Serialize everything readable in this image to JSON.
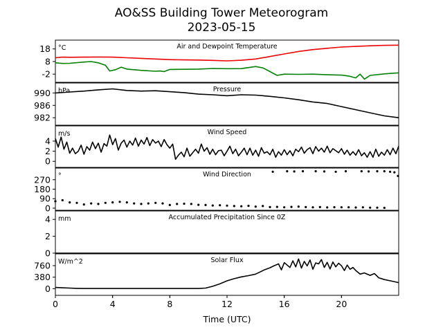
{
  "figure": {
    "title_line1": "AO&SS Building Tower Meteorogram",
    "title_line2": "2023-05-15",
    "xlabel": "Time (UTC)",
    "x_ticks": [
      0,
      4,
      8,
      12,
      16,
      20
    ],
    "x_range": [
      0,
      24
    ]
  },
  "chart_data": [
    {
      "type": "line",
      "title": "Air and Dewpoint Temperature",
      "unit": "°C",
      "ylim": [
        -8.5,
        25
      ],
      "y_ticks": [
        -2,
        8,
        18
      ],
      "series": [
        {
          "color": "#ee0000",
          "x": [
            0,
            0.5,
            1,
            2,
            3,
            4,
            5,
            6,
            7,
            8,
            9,
            10,
            11,
            12,
            13,
            14,
            15,
            16,
            17,
            18,
            19,
            20,
            21,
            22,
            23,
            24
          ],
          "values": [
            11,
            11.5,
            11.4,
            11.5,
            11.6,
            11.5,
            11,
            10.5,
            10,
            9.5,
            9.3,
            9.2,
            8.9,
            8.5,
            9,
            10,
            12,
            14,
            16,
            17.5,
            18.5,
            19.5,
            20,
            20.5,
            20.8,
            21
          ]
        },
        {
          "color": "#008000",
          "x": [
            0,
            0.5,
            1,
            2,
            2.5,
            3,
            3.5,
            3.8,
            4.2,
            4.6,
            5,
            6,
            7,
            7.3,
            7.6,
            8,
            9,
            10,
            11,
            12,
            13,
            14,
            14.5,
            15,
            15.5,
            16,
            17,
            18,
            19,
            20,
            20.5,
            21,
            21.3,
            21.6,
            22,
            23,
            24
          ],
          "values": [
            7,
            6.5,
            6.6,
            7.6,
            8,
            7,
            5,
            0.5,
            1.5,
            3.5,
            2,
            1,
            0.3,
            0.5,
            0,
            1.7,
            1.8,
            2,
            2.5,
            2.3,
            2.4,
            4,
            3,
            0,
            -3,
            -2,
            -2.2,
            -2,
            -2.5,
            -2.8,
            -3.5,
            -5,
            -2,
            -6,
            -3,
            -1.8,
            -1
          ]
        }
      ]
    },
    {
      "type": "line",
      "title": "Pressure",
      "unit": "hPa",
      "ylim": [
        979.6,
        993.2
      ],
      "y_ticks": [
        982,
        986,
        990
      ],
      "series": [
        {
          "color": "#000000",
          "x": [
            0,
            1,
            2,
            3,
            4,
            5,
            6,
            7,
            8,
            9,
            10,
            11,
            12,
            13,
            14,
            15,
            16,
            17,
            18,
            19,
            20,
            21,
            22,
            23,
            24
          ],
          "values": [
            990,
            990.3,
            990.6,
            991,
            991.3,
            990.8,
            990.6,
            990.7,
            990.4,
            990.1,
            989.6,
            989.4,
            989.1,
            989.4,
            989.3,
            988.9,
            988.4,
            987.8,
            987.1,
            986.6,
            985.6,
            984.6,
            983.6,
            982.6,
            982
          ]
        }
      ]
    },
    {
      "type": "line",
      "title": "Wind Speed",
      "unit": "m/s",
      "ylim": [
        -1.2,
        7
      ],
      "y_ticks": [
        0,
        2,
        4
      ],
      "series": [
        {
          "color": "#000000",
          "x": [
            0,
            0.2,
            0.4,
            0.6,
            0.8,
            1,
            1.2,
            1.4,
            1.6,
            1.8,
            2,
            2.2,
            2.4,
            2.6,
            2.8,
            3,
            3.2,
            3.4,
            3.6,
            3.8,
            4,
            4.2,
            4.4,
            4.6,
            4.8,
            5,
            5.2,
            5.4,
            5.6,
            5.8,
            6,
            6.2,
            6.4,
            6.6,
            6.8,
            7,
            7.2,
            7.4,
            7.6,
            7.8,
            8,
            8.2,
            8.4,
            8.6,
            8.8,
            9,
            9.2,
            9.4,
            9.6,
            9.8,
            10,
            10.2,
            10.4,
            10.6,
            10.8,
            11,
            11.2,
            11.4,
            11.6,
            11.8,
            12,
            12.2,
            12.4,
            12.6,
            12.8,
            13,
            13.2,
            13.4,
            13.6,
            13.8,
            14,
            14.2,
            14.4,
            14.6,
            14.8,
            15,
            15.2,
            15.4,
            15.6,
            15.8,
            16,
            16.2,
            16.4,
            16.6,
            16.8,
            17,
            17.2,
            17.4,
            17.6,
            17.8,
            18,
            18.2,
            18.4,
            18.6,
            18.8,
            19,
            19.2,
            19.4,
            19.6,
            19.8,
            20,
            20.2,
            20.4,
            20.6,
            20.8,
            21,
            21.2,
            21.4,
            21.6,
            21.8,
            22,
            22.2,
            22.4,
            22.6,
            22.8,
            23,
            23.2,
            23.4,
            23.6,
            23.8,
            24
          ],
          "values": [
            4.5,
            2.8,
            4.8,
            2.4,
            3.8,
            1.6,
            2.6,
            1.5,
            2,
            3.2,
            1.4,
            2.9,
            2.2,
            3.8,
            2.5,
            3.6,
            1.8,
            3.5,
            3,
            5.2,
            3.3,
            4.5,
            2.2,
            3.6,
            4.2,
            2.8,
            4,
            3.2,
            4.6,
            3,
            4.2,
            3.4,
            4.7,
            3.1,
            4.3,
            3.6,
            4,
            2.9,
            4.3,
            3.3,
            2.6,
            3.4,
            0.4,
            1.2,
            1.8,
            0.9,
            2.6,
            1,
            1.7,
            2.4,
            1.6,
            3.4,
            2,
            2.7,
            1.4,
            2.4,
            1.3,
            2.1,
            2.2,
            1.1,
            2,
            3,
            1.5,
            2.4,
            1.1,
            1.8,
            2.6,
            1.3,
            2.6,
            1.2,
            2.2,
            1,
            2.7,
            1.6,
            1.9,
            1.3,
            2.4,
            0.8,
            1.9,
            1.2,
            2.3,
            1.3,
            2.1,
            1.1,
            2.4,
            1.9,
            2.8,
            1.6,
            2.3,
            2.7,
            1.5,
            2.9,
            2,
            2.6,
            1.8,
            3,
            1.7,
            2.5,
            2.1,
            1.7,
            2.5,
            1.4,
            2.2,
            1.2,
            1.9,
            1.2,
            2.3,
            1.1,
            1.7,
            0.8,
            1.9,
            0.8,
            2.4,
            1,
            1.8,
            1.2,
            2.3,
            1.3,
            2.6,
            1.5,
            3
          ]
        }
      ]
    },
    {
      "type": "scatter",
      "title": "Wind Direction",
      "unit": "°",
      "ylim": [
        -20,
        380
      ],
      "y_ticks": [
        0,
        90,
        180,
        270
      ],
      "series": [
        {
          "color": "#000000",
          "x": [
            0,
            0.5,
            1,
            1.5,
            2,
            2.5,
            3,
            3.5,
            4,
            4.5,
            5,
            5.5,
            6,
            6.5,
            7,
            7.5,
            8,
            8.5,
            9,
            9.5,
            10,
            10.5,
            11,
            11.5,
            12,
            12.5,
            13,
            13.5,
            14,
            14.5,
            15,
            15.5,
            16,
            16.5,
            17,
            17.5,
            18,
            18.5,
            19,
            19.5,
            20,
            20.5,
            21,
            21.5,
            22,
            22.5,
            23,
            15.2,
            16.2,
            16.7,
            17.3,
            18.2,
            18.8,
            19.6,
            20.3,
            21.4,
            21.9,
            22.5,
            23,
            23.4,
            23.7,
            23.95
          ],
          "values": [
            65,
            75,
            55,
            50,
            35,
            45,
            40,
            50,
            55,
            60,
            55,
            45,
            40,
            45,
            50,
            45,
            30,
            40,
            42,
            40,
            32,
            30,
            25,
            28,
            24,
            20,
            18,
            22,
            15,
            20,
            10,
            12,
            8,
            12,
            15,
            10,
            8,
            10,
            7,
            9,
            8,
            8,
            6,
            8,
            5,
            5,
            3,
            345,
            350,
            348,
            350,
            350,
            348,
            345,
            350,
            350,
            348,
            350,
            350,
            345,
            340,
            305
          ]
        }
      ]
    },
    {
      "type": "line",
      "title": "Accumulated Precipitation Since 0Z",
      "unit": "mm",
      "ylim": [
        0,
        5
      ],
      "y_ticks": [
        0,
        2,
        4
      ],
      "series": [
        {
          "color": "#000000",
          "x": [
            0,
            24
          ],
          "values": [
            0,
            0
          ]
        }
      ]
    },
    {
      "type": "line",
      "title": "Solar Flux",
      "unit": "W/m^2",
      "ylim": [
        -220,
        1150
      ],
      "y_ticks": [
        0,
        380,
        760
      ],
      "series": [
        {
          "color": "#000000",
          "x": [
            0,
            0.5,
            1,
            1.5,
            2,
            4,
            6,
            8,
            10,
            10.5,
            11,
            11.5,
            12,
            12.5,
            13,
            13.5,
            14,
            14.3,
            14.6,
            15,
            15.3,
            15.6,
            15.8,
            16,
            16.2,
            16.4,
            16.6,
            16.8,
            17,
            17.2,
            17.4,
            17.6,
            17.8,
            18,
            18.2,
            18.4,
            18.6,
            18.8,
            19,
            19.2,
            19.4,
            19.6,
            19.8,
            20,
            20.2,
            20.4,
            20.6,
            20.8,
            21,
            21.3,
            21.6,
            22,
            22.3,
            22.6,
            23,
            23.5,
            24
          ],
          "values": [
            40,
            30,
            20,
            10,
            5,
            5,
            5,
            5,
            5,
            20,
            80,
            160,
            260,
            330,
            390,
            430,
            480,
            550,
            620,
            690,
            760,
            820,
            620,
            860,
            780,
            700,
            920,
            720,
            980,
            680,
            900,
            750,
            950,
            640,
            850,
            820,
            960,
            700,
            870,
            650,
            880,
            720,
            840,
            760,
            600,
            780,
            640,
            700,
            600,
            480,
            520,
            440,
            500,
            360,
            300,
            250,
            200
          ]
        }
      ]
    }
  ]
}
